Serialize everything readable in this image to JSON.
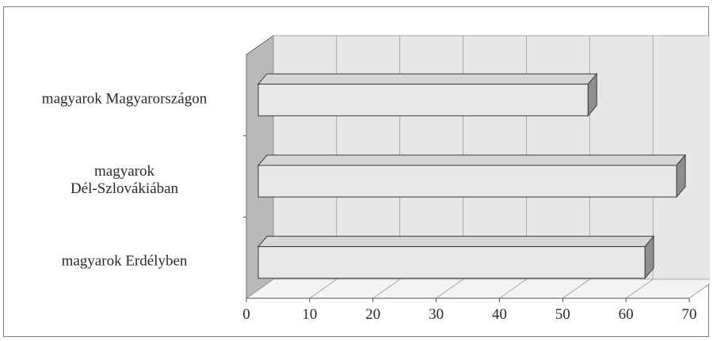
{
  "chart_data": {
    "type": "bar",
    "orientation": "horizontal",
    "style": "3d",
    "categories": [
      [
        "magyarok Magyarországon"
      ],
      [
        "magyarok",
        "Dél-Szlovákiában"
      ],
      [
        "magyarok Erdélyben"
      ]
    ],
    "values": [
      54,
      68,
      63
    ],
    "xlim": [
      0,
      70
    ],
    "xticks": [
      "0",
      "10",
      "20",
      "30",
      "40",
      "50",
      "60",
      "70"
    ],
    "title": "",
    "xlabel": "",
    "ylabel": "",
    "grid": true,
    "legend": "none"
  },
  "colors": {
    "background_wall": "#e7e7e7",
    "left_wall": "#b9b9b9",
    "floor": "#f3f3f3",
    "bar_front": "#e8e8e8",
    "bar_top": "#d6d6d6",
    "bar_side": "#8e8e8e",
    "gridline": "#9a9a9a",
    "axis": "#555555",
    "text": "#2a2a2a"
  }
}
